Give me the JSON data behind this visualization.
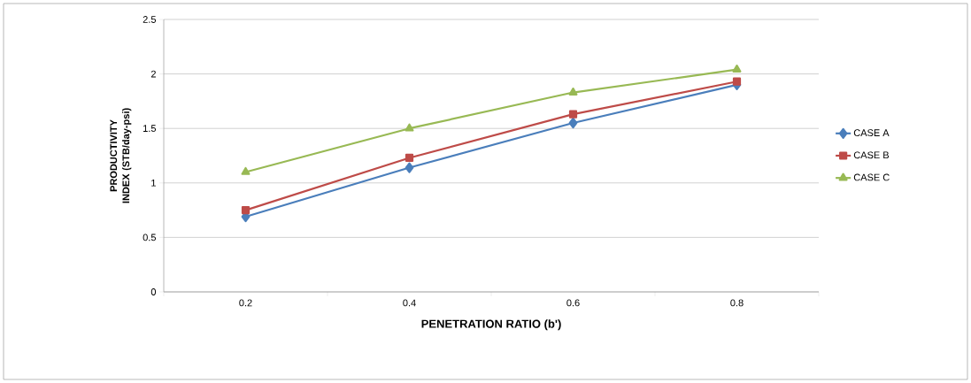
{
  "chart_data": {
    "type": "line",
    "xlabel": "PENETRATION RATIO (b')",
    "ylabel": "PRODUCTIVITY INDEX (STB/day-psi)",
    "categories": [
      "0.2",
      "0.4",
      "0.6",
      "0.8"
    ],
    "series": [
      {
        "name": "CASE A",
        "color": "#4a7ebb",
        "marker": "diamond",
        "values": [
          0.69,
          1.14,
          1.55,
          1.9
        ]
      },
      {
        "name": "CASE B",
        "color": "#be4b48",
        "marker": "square",
        "values": [
          0.75,
          1.23,
          1.63,
          1.93
        ]
      },
      {
        "name": "CASE C",
        "color": "#98b954",
        "marker": "triangle",
        "values": [
          1.1,
          1.5,
          1.83,
          2.04
        ]
      }
    ],
    "ylim": [
      0,
      2.5
    ],
    "yticks": [
      0,
      0.5,
      1,
      1.5,
      2,
      2.5
    ],
    "grid": "y",
    "legend": "right"
  }
}
